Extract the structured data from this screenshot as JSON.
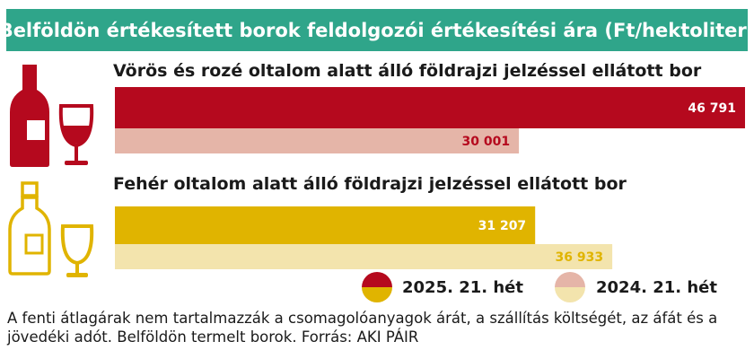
{
  "chart_data": {
    "type": "bar",
    "orientation": "horizontal",
    "title": "Belföldön értékesített borok feldolgozói értékesítési ára  (Ft/hektoliter)",
    "groups": [
      {
        "label": "Vörös és rozé oltalom alatt álló földrajzi jelzéssel ellátott bor",
        "values": [
          46791,
          30001
        ],
        "value_labels": [
          "46 791",
          "30 001"
        ]
      },
      {
        "label": "Fehér oltalom alatt álló földrajzi jelzéssel ellátott bor",
        "values": [
          31207,
          36933
        ],
        "value_labels": [
          "31 207",
          "36 933"
        ]
      }
    ],
    "series": [
      {
        "name": "2025. 21. hét"
      },
      {
        "name": "2024. 21. hét"
      }
    ],
    "colors": {
      "red_2025": "#b5091e",
      "red_2024": "#e5b5a8",
      "yellow_2025": "#e0b400",
      "yellow_2024": "#f3e4ad",
      "title_bg": "#2fa58a"
    },
    "legend_position": "bottom-right",
    "footnote": "A fenti átlagárak nem tartalmazzák a csomagolóanyagok árát, a szállítás költségét, az áfát és a jövedéki adót. Belföldön termelt borok. Forrás: AKI PÁIR"
  }
}
